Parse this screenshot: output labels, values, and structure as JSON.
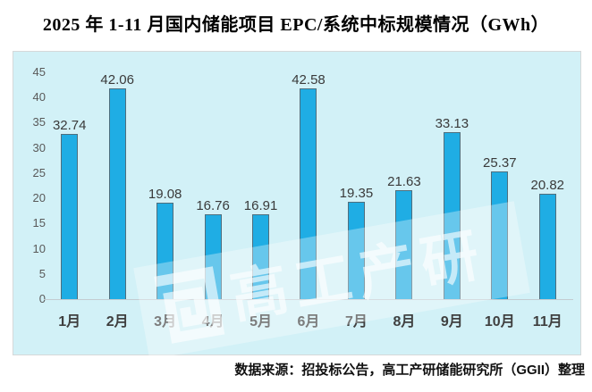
{
  "title": "2025 年 1-11 月国内储能项目 EPC/系统中标规模情况（GWh）",
  "source_note": "数据来源：招投标公告，高工产研储能研究所（GGII）整理",
  "watermark": {
    "logo_icon": "ggii-maze-logo",
    "text": "高工产研"
  },
  "colors": {
    "panel_bg": "#d2f1f7",
    "bar_fill": "#1fade4",
    "bar_border": "#4f6e7d",
    "value_label": "#3a3a3a",
    "axis_text": "#595959",
    "category_text": "#3f3f3f",
    "baseline": "#c3ccd1",
    "title_text": "#000000"
  },
  "chart_data": {
    "type": "bar",
    "title": "2025 年 1-11 月国内储能项目 EPC/系统中标规模情况（GWh）",
    "unit": "GWh",
    "categories": [
      "1月",
      "2月",
      "3月",
      "4月",
      "5月",
      "6月",
      "7月",
      "8月",
      "9月",
      "10月",
      "11月"
    ],
    "values": [
      32.74,
      42.06,
      19.08,
      16.76,
      16.91,
      42.58,
      19.35,
      21.63,
      33.13,
      25.37,
      20.82
    ],
    "xlabel": "",
    "ylabel": "",
    "ylim": [
      0,
      45
    ],
    "yticks": [
      0,
      5,
      10,
      15,
      20,
      25,
      30,
      35,
      40,
      45
    ],
    "grid": false,
    "legend": null,
    "data_labels": true
  }
}
